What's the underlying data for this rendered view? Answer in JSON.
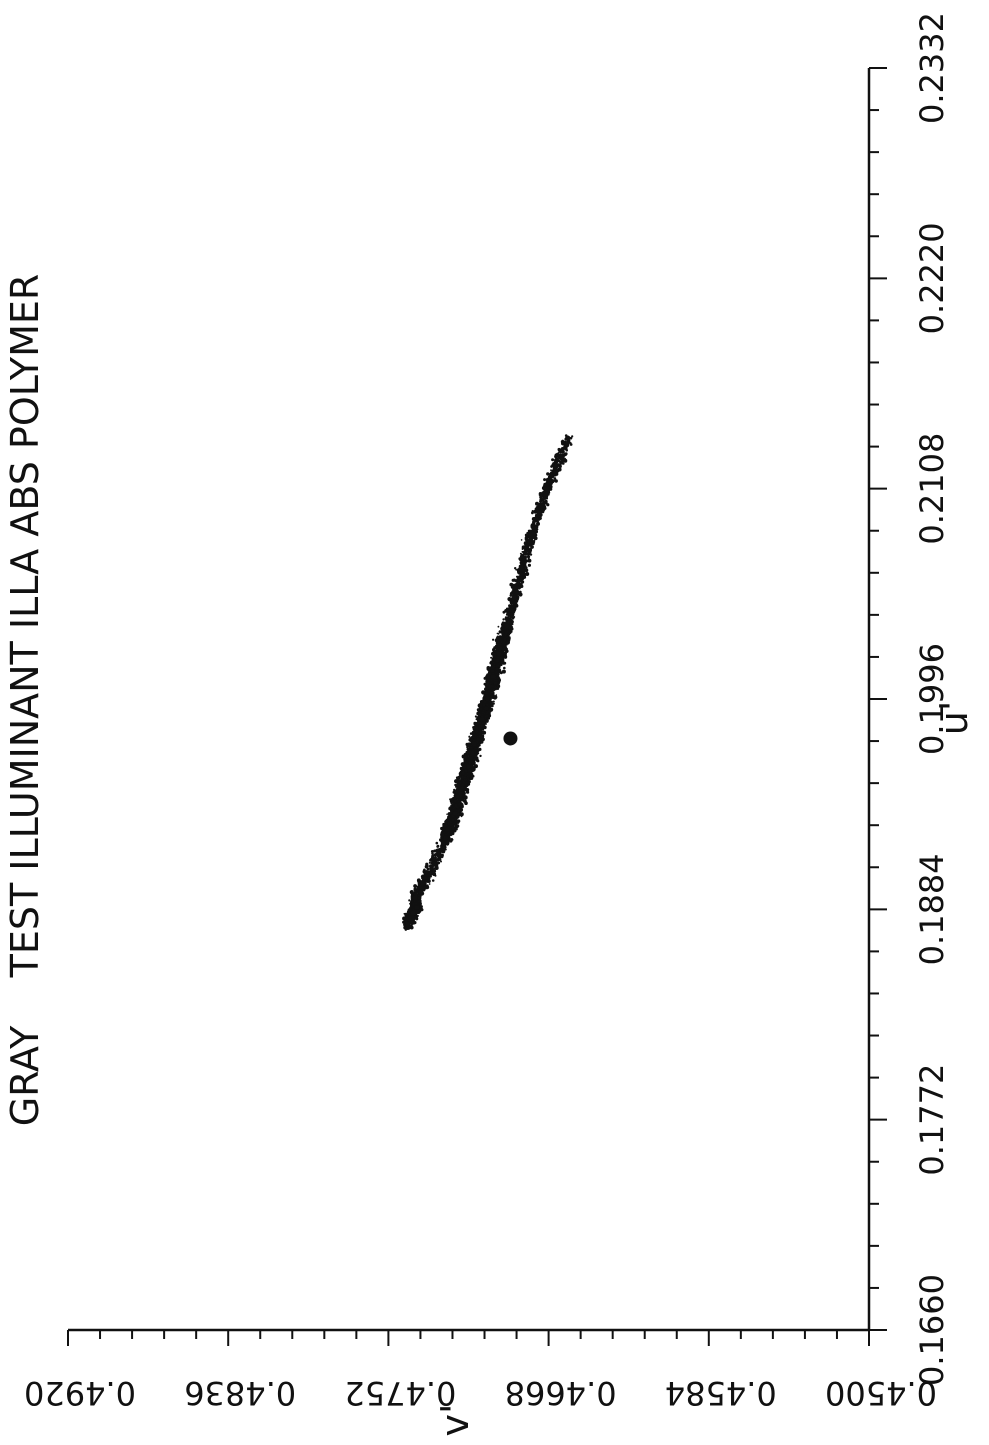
{
  "chart_data": {
    "type": "scatter",
    "title": "GRAY    TEST ILLUMINANT ILLA ABS POLYMER",
    "xlabel": "u'",
    "ylabel": "v'",
    "xlim": [
      0.166,
      0.2332
    ],
    "ylim": [
      0.45,
      0.492
    ],
    "x_ticks": [
      "0.1660",
      "0.1772",
      "0.1884",
      "0.1996",
      "0.2108",
      "0.2220",
      "0.2332"
    ],
    "y_ticks": [
      "0.4500",
      "0.4584",
      "0.4668",
      "0.4752",
      "0.4836",
      "0.4920"
    ],
    "grid": false,
    "orientation": "rotated 90 degrees counter-clockwise",
    "series": [
      {
        "points": [
          [
            0.1876,
            0.4742
          ],
          [
            0.1879,
            0.4741
          ],
          [
            0.1882,
            0.4739
          ],
          [
            0.1885,
            0.4737
          ],
          [
            0.189,
            0.4738
          ],
          [
            0.1898,
            0.4734
          ],
          [
            0.1908,
            0.4728
          ],
          [
            0.1922,
            0.4722
          ],
          [
            0.1935,
            0.4717
          ],
          [
            0.1948,
            0.4714
          ],
          [
            0.196,
            0.471
          ],
          [
            0.1972,
            0.4707
          ],
          [
            0.1985,
            0.4703
          ],
          [
            0.1996,
            0.47
          ],
          [
            0.2008,
            0.4697
          ],
          [
            0.202,
            0.4694
          ],
          [
            0.2035,
            0.469
          ],
          [
            0.205,
            0.4686
          ],
          [
            0.2065,
            0.4682
          ],
          [
            0.208,
            0.4678
          ],
          [
            0.2095,
            0.4673
          ],
          [
            0.2108,
            0.4669
          ],
          [
            0.212,
            0.4664
          ],
          [
            0.2135,
            0.4658
          ]
        ],
        "color": "#111111"
      }
    ],
    "reference_point": {
      "u": 0.1975,
      "v": 0.4688
    }
  }
}
